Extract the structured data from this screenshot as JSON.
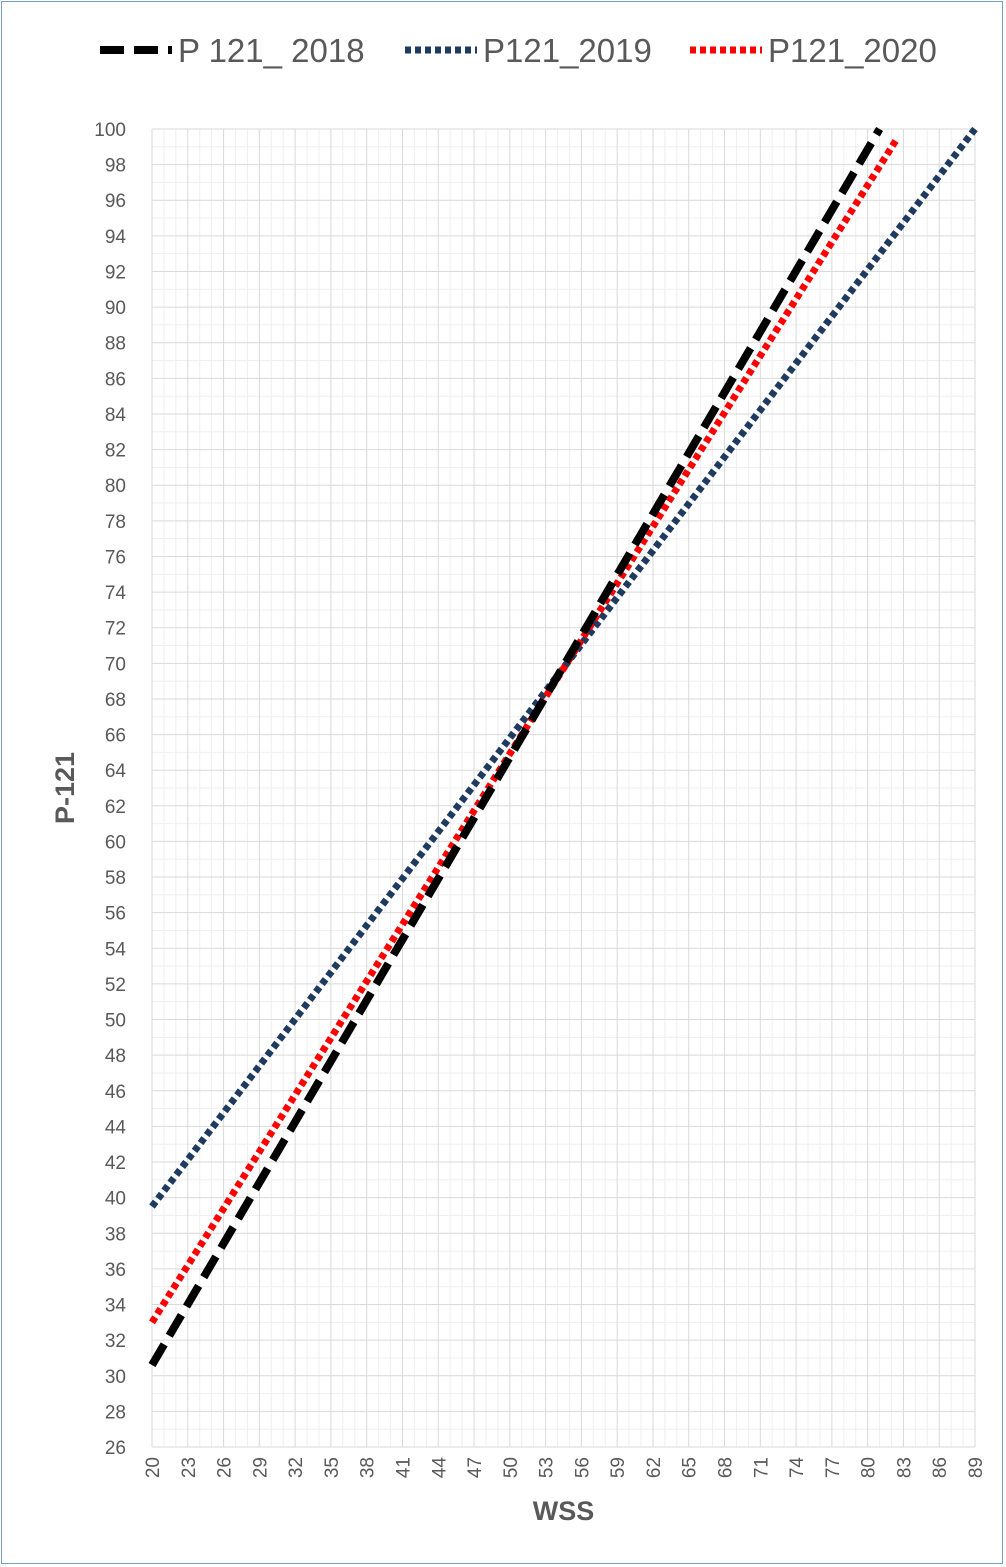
{
  "chart_data": {
    "type": "line",
    "xlabel": "WSS",
    "ylabel": "P-121",
    "xlim": [
      20,
      89
    ],
    "ylim": [
      26,
      100
    ],
    "x_ticks": [
      20,
      23,
      26,
      29,
      32,
      35,
      38,
      41,
      44,
      47,
      50,
      53,
      56,
      59,
      62,
      65,
      68,
      71,
      74,
      77,
      80,
      83,
      86,
      89
    ],
    "y_ticks": [
      26,
      28,
      30,
      32,
      34,
      36,
      38,
      40,
      42,
      44,
      46,
      48,
      50,
      52,
      54,
      56,
      58,
      60,
      62,
      64,
      66,
      68,
      70,
      72,
      74,
      76,
      78,
      80,
      82,
      84,
      86,
      88,
      90,
      92,
      94,
      96,
      98,
      100
    ],
    "grid": true,
    "legend_position": "top",
    "series": [
      {
        "name": "P 121_ 2018",
        "color": "#000000",
        "dash": "dashed",
        "x": [
          20,
          81
        ],
        "y": [
          30.6,
          100
        ]
      },
      {
        "name": "P121_2019",
        "color": "#1f3a5f",
        "dash": "dotted",
        "x": [
          20,
          89
        ],
        "y": [
          39.5,
          100
        ]
      },
      {
        "name": "P121_2020",
        "color": "#ff0000",
        "dash": "dotted",
        "x": [
          20,
          82.5
        ],
        "y": [
          33,
          99.5
        ]
      }
    ]
  }
}
